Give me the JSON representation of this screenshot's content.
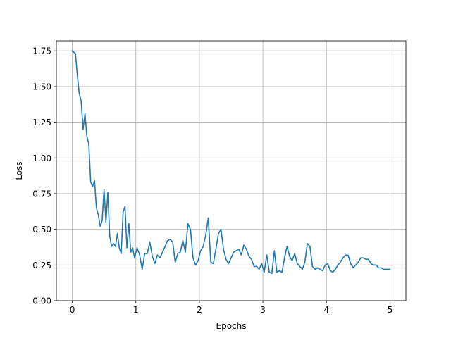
{
  "chart_data": {
    "type": "line",
    "xlabel": "Epochs",
    "ylabel": "Loss",
    "xlim": [
      -0.25,
      5.25
    ],
    "ylim": [
      0.0,
      1.82
    ],
    "xticks": [
      0,
      1,
      2,
      3,
      4,
      5
    ],
    "xtick_labels": [
      "0",
      "1",
      "2",
      "3",
      "4",
      "5"
    ],
    "yticks": [
      0.0,
      0.25,
      0.5,
      0.75,
      1.0,
      1.25,
      1.5,
      1.75
    ],
    "ytick_labels": [
      "0.00",
      "0.25",
      "0.50",
      "0.75",
      "1.00",
      "1.25",
      "1.50",
      "1.75"
    ],
    "grid": true,
    "line_color": "#1f77b4",
    "grid_color": "#b0b0b0",
    "series": [
      {
        "x": [
          0.0,
          0.05,
          0.08,
          0.11,
          0.14,
          0.17,
          0.2,
          0.23,
          0.26,
          0.29,
          0.32,
          0.35,
          0.38,
          0.41,
          0.44,
          0.47,
          0.5,
          0.53,
          0.56,
          0.59,
          0.62,
          0.65,
          0.68,
          0.71,
          0.74,
          0.77,
          0.8,
          0.83,
          0.86,
          0.89,
          0.92,
          0.95,
          0.98,
          1.02,
          1.06,
          1.1,
          1.14,
          1.18,
          1.22,
          1.26,
          1.3,
          1.34,
          1.38,
          1.42,
          1.46,
          1.5,
          1.54,
          1.58,
          1.62,
          1.66,
          1.7,
          1.74,
          1.78,
          1.82,
          1.86,
          1.9,
          1.94,
          1.98,
          2.02,
          2.06,
          2.1,
          2.14,
          2.18,
          2.22,
          2.26,
          2.3,
          2.34,
          2.38,
          2.42,
          2.46,
          2.5,
          2.54,
          2.58,
          2.62,
          2.66,
          2.7,
          2.74,
          2.78,
          2.82,
          2.86,
          2.9,
          2.94,
          2.98,
          3.02,
          3.06,
          3.1,
          3.14,
          3.18,
          3.22,
          3.26,
          3.3,
          3.34,
          3.38,
          3.42,
          3.46,
          3.5,
          3.54,
          3.58,
          3.62,
          3.66,
          3.7,
          3.74,
          3.78,
          3.82,
          3.86,
          3.9,
          3.94,
          3.98,
          4.02,
          4.06,
          4.1,
          4.14,
          4.18,
          4.22,
          4.26,
          4.3,
          4.34,
          4.38,
          4.42,
          4.46,
          4.5,
          4.54,
          4.58,
          4.62,
          4.66,
          4.7,
          4.74,
          4.78,
          4.82,
          4.86,
          4.9,
          4.95,
          5.0
        ],
        "values": [
          1.75,
          1.73,
          1.58,
          1.45,
          1.4,
          1.2,
          1.31,
          1.15,
          1.1,
          0.83,
          0.8,
          0.84,
          0.65,
          0.6,
          0.52,
          0.56,
          0.78,
          0.55,
          0.76,
          0.45,
          0.38,
          0.4,
          0.38,
          0.47,
          0.37,
          0.33,
          0.62,
          0.66,
          0.37,
          0.54,
          0.34,
          0.37,
          0.3,
          0.37,
          0.32,
          0.22,
          0.33,
          0.33,
          0.41,
          0.31,
          0.26,
          0.32,
          0.3,
          0.34,
          0.38,
          0.42,
          0.43,
          0.41,
          0.27,
          0.33,
          0.34,
          0.42,
          0.34,
          0.54,
          0.5,
          0.3,
          0.25,
          0.28,
          0.35,
          0.38,
          0.46,
          0.58,
          0.27,
          0.26,
          0.36,
          0.47,
          0.5,
          0.36,
          0.29,
          0.26,
          0.3,
          0.34,
          0.35,
          0.36,
          0.32,
          0.39,
          0.36,
          0.31,
          0.29,
          0.24,
          0.24,
          0.22,
          0.26,
          0.2,
          0.32,
          0.2,
          0.19,
          0.35,
          0.2,
          0.21,
          0.2,
          0.3,
          0.38,
          0.31,
          0.28,
          0.33,
          0.26,
          0.24,
          0.22,
          0.27,
          0.4,
          0.38,
          0.24,
          0.22,
          0.23,
          0.22,
          0.21,
          0.25,
          0.26,
          0.21,
          0.2,
          0.22,
          0.25,
          0.27,
          0.3,
          0.32,
          0.32,
          0.26,
          0.23,
          0.25,
          0.27,
          0.3,
          0.3,
          0.29,
          0.29,
          0.26,
          0.25,
          0.25,
          0.23,
          0.23,
          0.22,
          0.22,
          0.22
        ]
      }
    ]
  }
}
